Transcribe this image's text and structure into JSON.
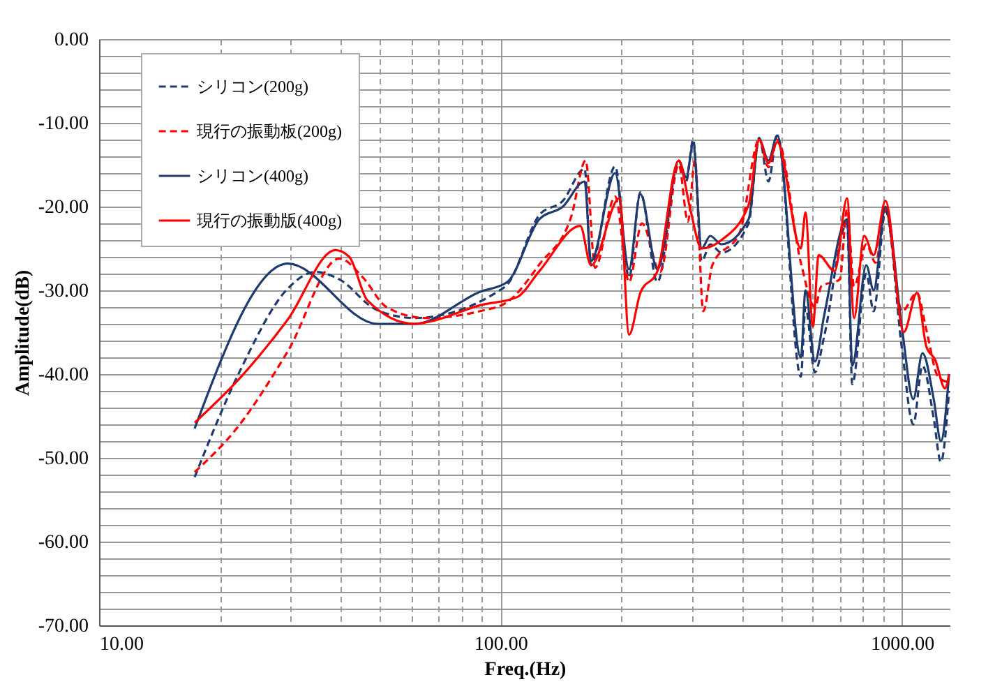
{
  "chart_data": {
    "type": "line",
    "xlabel": "Freq.(Hz)",
    "ylabel": "Amplitude(dB)",
    "log": "x",
    "grid": true,
    "legend": "top left",
    "marker": "none",
    "xlim": [
      10,
      1320
    ],
    "ylim": [
      -70,
      0
    ],
    "xticks": [
      {
        "value": 10,
        "label": "10.00"
      },
      {
        "value": 20,
        "label": null
      },
      {
        "value": 30,
        "label": null
      },
      {
        "value": 40,
        "label": null
      },
      {
        "value": 50,
        "label": null
      },
      {
        "value": 60,
        "label": null
      },
      {
        "value": 70,
        "label": null
      },
      {
        "value": 80,
        "label": null
      },
      {
        "value": 90,
        "label": null
      },
      {
        "value": 100,
        "label": "100.00"
      },
      {
        "value": 200,
        "label": null
      },
      {
        "value": 300,
        "label": null
      },
      {
        "value": 400,
        "label": null
      },
      {
        "value": 500,
        "label": null
      },
      {
        "value": 600,
        "label": null
      },
      {
        "value": 700,
        "label": null
      },
      {
        "value": 800,
        "label": null
      },
      {
        "value": 900,
        "label": null
      },
      {
        "value": 1000,
        "label": "1000.00"
      }
    ],
    "yticks": [
      {
        "value": -70,
        "label": "-70.00"
      },
      {
        "value": -68,
        "label": null
      },
      {
        "value": -66,
        "label": null
      },
      {
        "value": -64,
        "label": null
      },
      {
        "value": -62,
        "label": null
      },
      {
        "value": -60,
        "label": "-60.00"
      },
      {
        "value": -58,
        "label": null
      },
      {
        "value": -56,
        "label": null
      },
      {
        "value": -54,
        "label": null
      },
      {
        "value": -52,
        "label": null
      },
      {
        "value": -50,
        "label": "-50.00"
      },
      {
        "value": -48,
        "label": null
      },
      {
        "value": -46,
        "label": null
      },
      {
        "value": -44,
        "label": null
      },
      {
        "value": -42,
        "label": null
      },
      {
        "value": -40,
        "label": "-40.00"
      },
      {
        "value": -38,
        "label": null
      },
      {
        "value": -36,
        "label": null
      },
      {
        "value": -34,
        "label": null
      },
      {
        "value": -32,
        "label": null
      },
      {
        "value": -30,
        "label": "-30.00"
      },
      {
        "value": -28,
        "label": null
      },
      {
        "value": -26,
        "label": null
      },
      {
        "value": -24,
        "label": null
      },
      {
        "value": -22,
        "label": null
      },
      {
        "value": -20,
        "label": "-20.00"
      },
      {
        "value": -18,
        "label": null
      },
      {
        "value": -16,
        "label": null
      },
      {
        "value": -14,
        "label": null
      },
      {
        "value": -12,
        "label": null
      },
      {
        "value": -10,
        "label": "-10.00"
      },
      {
        "value": -8,
        "label": null
      },
      {
        "value": -6,
        "label": null
      },
      {
        "value": -4,
        "label": null
      },
      {
        "value": -2,
        "label": null
      },
      {
        "value": 0,
        "label": "0.00"
      }
    ],
    "series": [
      {
        "name": "シリコン(200g)",
        "color": "#1f3a6e",
        "line_style": "dashed",
        "x": [
          17.3,
          22.6,
          29.5,
          34.6,
          39.7,
          49,
          61,
          98,
          104,
          125,
          143,
          162,
          168,
          193,
          209,
          223,
          246,
          278,
          290,
          302,
          317,
          333,
          355,
          415,
          441,
          465,
          489,
          560,
          575,
          607,
          640,
          730,
          752,
          815,
          850,
          910,
          1000,
          1067,
          1125,
          1200,
          1250,
          1310
        ],
        "values": [
          -52.3,
          -39.3,
          -29.8,
          -27.8,
          -28.7,
          -32.3,
          -33.3,
          -30.2,
          -29.3,
          -21,
          -19.3,
          -15.5,
          -27,
          -15.2,
          -28.5,
          -18.3,
          -29,
          -14.5,
          -17,
          -12,
          -26.5,
          -24.5,
          -25.5,
          -22,
          -11.8,
          -17,
          -11.5,
          -40.3,
          -32,
          -39.8,
          -35.5,
          -22,
          -41.2,
          -28,
          -32.5,
          -20.5,
          -37,
          -46,
          -39,
          -45.3,
          -50.5,
          -42
        ]
      },
      {
        "name": "現行の振動板(200g)",
        "color": "#ff0000",
        "line_style": "dashed",
        "x": [
          17.3,
          22,
          29.5,
          39.7,
          45.5,
          52,
          65,
          88.6,
          104,
          125,
          150,
          163,
          172,
          193,
          209,
          225,
          250,
          278,
          293,
          305,
          320,
          337,
          395,
          441,
          465,
          489,
          560,
          607,
          630,
          700,
          730,
          760,
          815,
          860,
          910,
          1000,
          1090,
          1150,
          1230,
          1310
        ],
        "values": [
          -51.7,
          -46.5,
          -37.3,
          -26.2,
          -28.5,
          -32,
          -33.3,
          -32.5,
          -31.4,
          -26.9,
          -21.2,
          -14.5,
          -27.3,
          -18.8,
          -29,
          -22,
          -27.8,
          -15,
          -21.8,
          -14.5,
          -32.5,
          -27,
          -23,
          -12,
          -15.3,
          -12,
          -26.7,
          -32,
          -29.5,
          -28.7,
          -20.3,
          -29.5,
          -24.5,
          -26.7,
          -20.3,
          -32.5,
          -30.3,
          -34.7,
          -40.3,
          -41
        ]
      },
      {
        "name": "シリコン(400g)",
        "color": "#1f3a6e",
        "line_style": "solid",
        "x": [
          17.3,
          29.5,
          49.4,
          61,
          88.6,
          104,
          125,
          143,
          162,
          168,
          193,
          209,
          223,
          246,
          278,
          290,
          302,
          317,
          333,
          355,
          415,
          441,
          465,
          489,
          560,
          575,
          607,
          640,
          730,
          752,
          815,
          850,
          910,
          1000,
          1067,
          1125,
          1200,
          1250,
          1310
        ],
        "values": [
          -46.5,
          -26.8,
          -34,
          -34,
          -30.2,
          -29,
          -21.5,
          -20,
          -17,
          -26.5,
          -16,
          -27.5,
          -18.5,
          -27.5,
          -14.5,
          -16.5,
          -12.5,
          -25,
          -23.5,
          -24.5,
          -21.5,
          -12,
          -14.5,
          -11.5,
          -38,
          -30,
          -38.5,
          -33,
          -21.5,
          -39,
          -27,
          -30,
          -20,
          -34.5,
          -43,
          -37.5,
          -43,
          -48,
          -40
        ]
      },
      {
        "name": "現行の振動版(400g)",
        "color": "#ff0000",
        "line_style": "solid",
        "x": [
          17.3,
          22.6,
          29.5,
          38.8,
          42,
          46.6,
          61,
          67,
          88.6,
          110,
          125,
          158,
          168,
          198,
          209,
          223,
          246,
          278,
          296,
          317,
          355,
          415,
          441,
          465,
          489,
          560,
          575,
          600,
          620,
          680,
          730,
          760,
          805,
          850,
          910,
          1010,
          1090,
          1150,
          1210,
          1280,
          1310
        ],
        "values": [
          -45.8,
          -40.3,
          -33.5,
          -25.2,
          -26,
          -31.2,
          -34,
          -33.7,
          -31.8,
          -30.8,
          -27.7,
          -22.3,
          -27,
          -19,
          -35.3,
          -30.3,
          -27.7,
          -14.5,
          -20,
          -25,
          -24,
          -19.8,
          -12,
          -14.8,
          -12.3,
          -25,
          -20.7,
          -34.3,
          -25.8,
          -27.7,
          -19,
          -33.3,
          -23.5,
          -25.8,
          -19.3,
          -35,
          -30.3,
          -36.7,
          -38.3,
          -41.7,
          -40
        ]
      }
    ]
  }
}
